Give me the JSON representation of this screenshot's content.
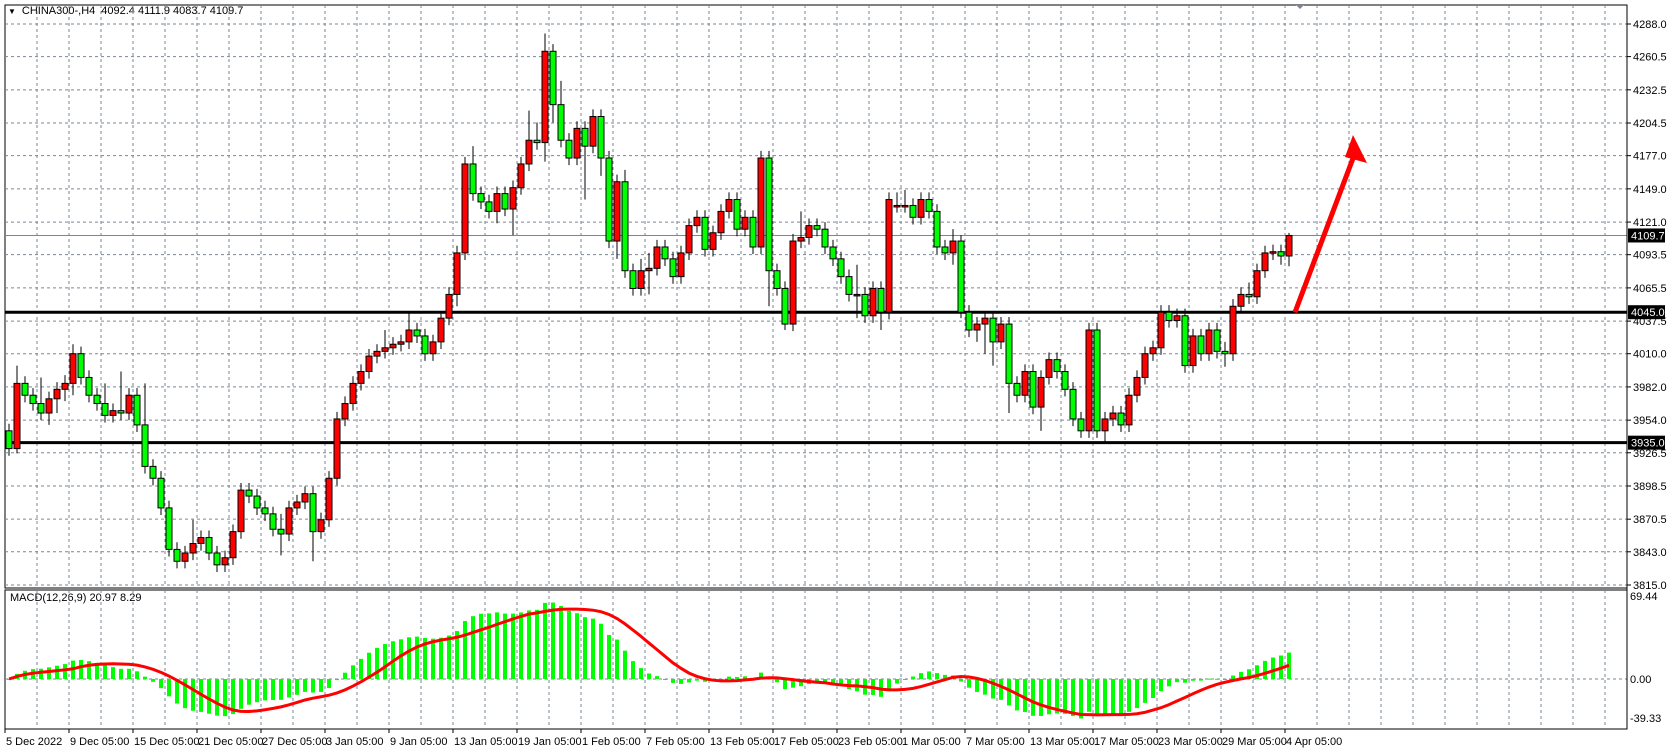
{
  "header": {
    "symbol": "CHINA300-,H4",
    "ohlc_text": "4092.4 4111.9 4083.7 4109.7"
  },
  "colors": {
    "bull_candle": "#ff0000",
    "bear_candle": "#00ff00",
    "grid": "#7a8696",
    "level_line": "#000000",
    "macd_histogram": "#00ff00",
    "macd_signal": "#ff0000",
    "arrow": "#ff0000",
    "current_price_line": "#7a8696"
  },
  "chart_data": [
    {
      "type": "candlestick",
      "price_axis_ticks": [
        "4288.0",
        "4260.5",
        "4232.5",
        "4204.5",
        "4177.0",
        "4149.0",
        "4121.0",
        "4093.5",
        "4065.5",
        "4037.5",
        "4010.0",
        "3982.0",
        "3954.0",
        "3926.5",
        "3898.5",
        "3870.5",
        "3843.0",
        "3815.0"
      ],
      "ylim": [
        3815.0,
        4288.0
      ],
      "time_axis_labels": [
        "5 Dec 2022",
        "9 Dec 05:00",
        "15 Dec 05:00",
        "21 Dec 05:00",
        "27 Dec 05:00",
        "3 Jan 05:00",
        "9 Jan 05:00",
        "13 Jan 05:00",
        "19 Jan 05:00",
        "1 Feb 05:00",
        "7 Feb 05:00",
        "13 Feb 05:00",
        "17 Feb 05:00",
        "23 Feb 05:00",
        "1 Mar 05:00",
        "7 Mar 05:00",
        "13 Mar 05:00",
        "17 Mar 05:00",
        "23 Mar 05:00",
        "29 Mar 05:00",
        "4 Apr 05:00"
      ],
      "current_price": "4109.7",
      "horizontal_levels": [
        "4045.0",
        "3935.0"
      ],
      "grid": true,
      "ohlc": [
        [
          3945,
          3951,
          3924,
          3930
        ],
        [
          3930,
          4000,
          3926,
          3985
        ],
        [
          3985,
          3991,
          3969,
          3975
        ],
        [
          3975,
          3981,
          3962,
          3968
        ],
        [
          3968,
          3990,
          3954,
          3960
        ],
        [
          3960,
          3978,
          3950,
          3972
        ],
        [
          3972,
          3986,
          3960,
          3980
        ],
        [
          3980,
          3992,
          3970,
          3985
        ],
        [
          3985,
          4018,
          3975,
          4010
        ],
        [
          4010,
          4016,
          3984,
          3990
        ],
        [
          3990,
          3996,
          3969,
          3975
        ],
        [
          3975,
          3981,
          3962,
          3968
        ],
        [
          3968,
          3985,
          3952,
          3958
        ],
        [
          3958,
          3968,
          3952,
          3962
        ],
        [
          3962,
          3995,
          3954,
          3960
        ],
        [
          3960,
          3981,
          3954,
          3975
        ],
        [
          3975,
          3981,
          3944,
          3950
        ],
        [
          3950,
          3985,
          3909,
          3915
        ],
        [
          3915,
          3921,
          3899,
          3905
        ],
        [
          3905,
          3911,
          3874,
          3880
        ],
        [
          3880,
          3886,
          3839,
          3845
        ],
        [
          3845,
          3851,
          3829,
          3835
        ],
        [
          3835,
          3848,
          3829,
          3842
        ],
        [
          3842,
          3870,
          3836,
          3850
        ],
        [
          3850,
          3861,
          3844,
          3855
        ],
        [
          3855,
          3861,
          3836,
          3842
        ],
        [
          3842,
          3848,
          3826,
          3832
        ],
        [
          3832,
          3844,
          3826,
          3838
        ],
        [
          3838,
          3866,
          3832,
          3860
        ],
        [
          3860,
          3901,
          3854,
          3895
        ],
        [
          3895,
          3901,
          3884,
          3890
        ],
        [
          3890,
          3896,
          3874,
          3880
        ],
        [
          3880,
          3886,
          3869,
          3875
        ],
        [
          3875,
          3881,
          3856,
          3862
        ],
        [
          3862,
          3875,
          3840,
          3858
        ],
        [
          3858,
          3886,
          3852,
          3880
        ],
        [
          3880,
          3891,
          3874,
          3885
        ],
        [
          3885,
          3898,
          3879,
          3892
        ],
        [
          3892,
          3898,
          3835,
          3860
        ],
        [
          3860,
          3876,
          3854,
          3870
        ],
        [
          3870,
          3911,
          3864,
          3905
        ],
        [
          3905,
          3961,
          3899,
          3955
        ],
        [
          3955,
          3974,
          3949,
          3968
        ],
        [
          3968,
          3991,
          3962,
          3985
        ],
        [
          3985,
          4001,
          3979,
          3995
        ],
        [
          3995,
          4014,
          3989,
          4008
        ],
        [
          4008,
          4018,
          4002,
          4012
        ],
        [
          4012,
          4030,
          4006,
          4015
        ],
        [
          4015,
          4024,
          4009,
          4018
        ],
        [
          4018,
          4026,
          4012,
          4020
        ],
        [
          4020,
          4045,
          4014,
          4030
        ],
        [
          4030,
          4036,
          4019,
          4025
        ],
        [
          4025,
          4031,
          4004,
          4010
        ],
        [
          4010,
          4026,
          4004,
          4020
        ],
        [
          4020,
          4046,
          4014,
          4040
        ],
        [
          4040,
          4066,
          4034,
          4060
        ],
        [
          4060,
          4101,
          4050,
          4095
        ],
        [
          4095,
          4176,
          4089,
          4170
        ],
        [
          4170,
          4185,
          4139,
          4145
        ],
        [
          4145,
          4151,
          4132,
          4138
        ],
        [
          4138,
          4144,
          4124,
          4130
        ],
        [
          4130,
          4151,
          4120,
          4145
        ],
        [
          4145,
          4151,
          4126,
          4132
        ],
        [
          4132,
          4156,
          4110,
          4150
        ],
        [
          4150,
          4176,
          4144,
          4170
        ],
        [
          4170,
          4215,
          4164,
          4190
        ],
        [
          4190,
          4205,
          4182,
          4188
        ],
        [
          4188,
          4280,
          4172,
          4265
        ],
        [
          4265,
          4271,
          4205,
          4220
        ],
        [
          4220,
          4240,
          4184,
          4190
        ],
        [
          4190,
          4196,
          4169,
          4175
        ],
        [
          4175,
          4206,
          4169,
          4200
        ],
        [
          4200,
          4206,
          4140,
          4185
        ],
        [
          4185,
          4216,
          4179,
          4210
        ],
        [
          4210,
          4216,
          4160,
          4175
        ],
        [
          4175,
          4181,
          4099,
          4105
        ],
        [
          4105,
          4161,
          4090,
          4155
        ],
        [
          4155,
          4165,
          4074,
          4080
        ],
        [
          4080,
          4086,
          4059,
          4065
        ],
        [
          4065,
          4090,
          4059,
          4080
        ],
        [
          4080,
          4095,
          4060,
          4082
        ],
        [
          4082,
          4106,
          4076,
          4100
        ],
        [
          4100,
          4106,
          4084,
          4090
        ],
        [
          4090,
          4096,
          4069,
          4075
        ],
        [
          4075,
          4101,
          4069,
          4095
        ],
        [
          4095,
          4124,
          4089,
          4118
        ],
        [
          4118,
          4131,
          4112,
          4125
        ],
        [
          4125,
          4131,
          4092,
          4098
        ],
        [
          4098,
          4118,
          4092,
          4112
        ],
        [
          4112,
          4136,
          4106,
          4130
        ],
        [
          4130,
          4146,
          4124,
          4140
        ],
        [
          4140,
          4146,
          4109,
          4115
        ],
        [
          4115,
          4131,
          4109,
          4125
        ],
        [
          4125,
          4131,
          4094,
          4100
        ],
        [
          4100,
          4181,
          4094,
          4175
        ],
        [
          4175,
          4181,
          4050,
          4080
        ],
        [
          4080,
          4086,
          4059,
          4065
        ],
        [
          4065,
          4071,
          4030,
          4035
        ],
        [
          4035,
          4111,
          4029,
          4105
        ],
        [
          4105,
          4130,
          4099,
          4108
        ],
        [
          4108,
          4124,
          4102,
          4118
        ],
        [
          4118,
          4124,
          4109,
          4115
        ],
        [
          4115,
          4121,
          4094,
          4100
        ],
        [
          4100,
          4106,
          4084,
          4090
        ],
        [
          4090,
          4096,
          4069,
          4075
        ],
        [
          4075,
          4081,
          4054,
          4060
        ],
        [
          4060,
          4085,
          4040,
          4060
        ],
        [
          4060,
          4066,
          4036,
          4042
        ],
        [
          4042,
          4071,
          4036,
          4065
        ],
        [
          4065,
          4071,
          4030,
          4045
        ],
        [
          4045,
          4146,
          4039,
          4140
        ],
        [
          4135,
          4146,
          4129,
          4135
        ],
        [
          4135,
          4148,
          4129,
          4135
        ],
        [
          4135,
          4141,
          4119,
          4125
        ],
        [
          4125,
          4146,
          4119,
          4140
        ],
        [
          4140,
          4146,
          4124,
          4130
        ],
        [
          4130,
          4136,
          4094,
          4100
        ],
        [
          4100,
          4106,
          4089,
          4095
        ],
        [
          4095,
          4115,
          4085,
          4105
        ],
        [
          4105,
          4110,
          4040,
          4045
        ],
        [
          4045,
          4051,
          4024,
          4030
        ],
        [
          4030,
          4041,
          4020,
          4035
        ],
        [
          4035,
          4046,
          4010,
          4040
        ],
        [
          4040,
          4046,
          4000,
          4020
        ],
        [
          4020,
          4041,
          4014,
          4035
        ],
        [
          4035,
          4041,
          3960,
          3985
        ],
        [
          3985,
          3991,
          3969,
          3975
        ],
        [
          3975,
          4001,
          3969,
          3995
        ],
        [
          3995,
          4001,
          3959,
          3965
        ],
        [
          3965,
          3996,
          3945,
          3990
        ],
        [
          3990,
          4011,
          3984,
          4005
        ],
        [
          4005,
          4011,
          3989,
          3995
        ],
        [
          3995,
          4001,
          3974,
          3980
        ],
        [
          3980,
          3986,
          3949,
          3955
        ],
        [
          3955,
          3961,
          3939,
          3945
        ],
        [
          3945,
          4036,
          3939,
          4030
        ],
        [
          4030,
          4036,
          3939,
          3945
        ],
        [
          3945,
          3961,
          3935,
          3955
        ],
        [
          3955,
          3966,
          3949,
          3960
        ],
        [
          3960,
          3966,
          3944,
          3950
        ],
        [
          3950,
          3981,
          3944,
          3975
        ],
        [
          3975,
          3996,
          3969,
          3990
        ],
        [
          3990,
          4016,
          3984,
          4010
        ],
        [
          4010,
          4021,
          4004,
          4015
        ],
        [
          4015,
          4051,
          4009,
          4045
        ],
        [
          4045,
          4051,
          4032,
          4038
        ],
        [
          4038,
          4048,
          4032,
          4042
        ],
        [
          4042,
          4048,
          3994,
          4000
        ],
        [
          4000,
          4031,
          3994,
          4025
        ],
        [
          4025,
          4031,
          4004,
          4010
        ],
        [
          4010,
          4036,
          4004,
          4030
        ],
        [
          4030,
          4036,
          4006,
          4012
        ],
        [
          4012,
          4020,
          3999,
          4010
        ],
        [
          4010,
          4056,
          4004,
          4050
        ],
        [
          4050,
          4066,
          4044,
          4060
        ],
        [
          4060,
          4070,
          4052,
          4058
        ],
        [
          4058,
          4086,
          4052,
          4080
        ],
        [
          4080,
          4101,
          4074,
          4095
        ],
        [
          4095,
          4102,
          4089,
          4096
        ],
        [
          4096,
          4102,
          4085,
          4092.4
        ],
        [
          4092.4,
          4111.9,
          4083.7,
          4109.7
        ]
      ]
    },
    {
      "type": "bar+line",
      "label": "MACD(12,26,9) 20.97 8.29",
      "params": {
        "fast": 12,
        "slow": 26,
        "signal": 9
      },
      "macd_value": 20.97,
      "signal_value": 8.29,
      "axis_ticks": [
        "69.44",
        "0.00",
        "-39.33"
      ],
      "ylim": [
        -39.33,
        69.44
      ]
    }
  ]
}
